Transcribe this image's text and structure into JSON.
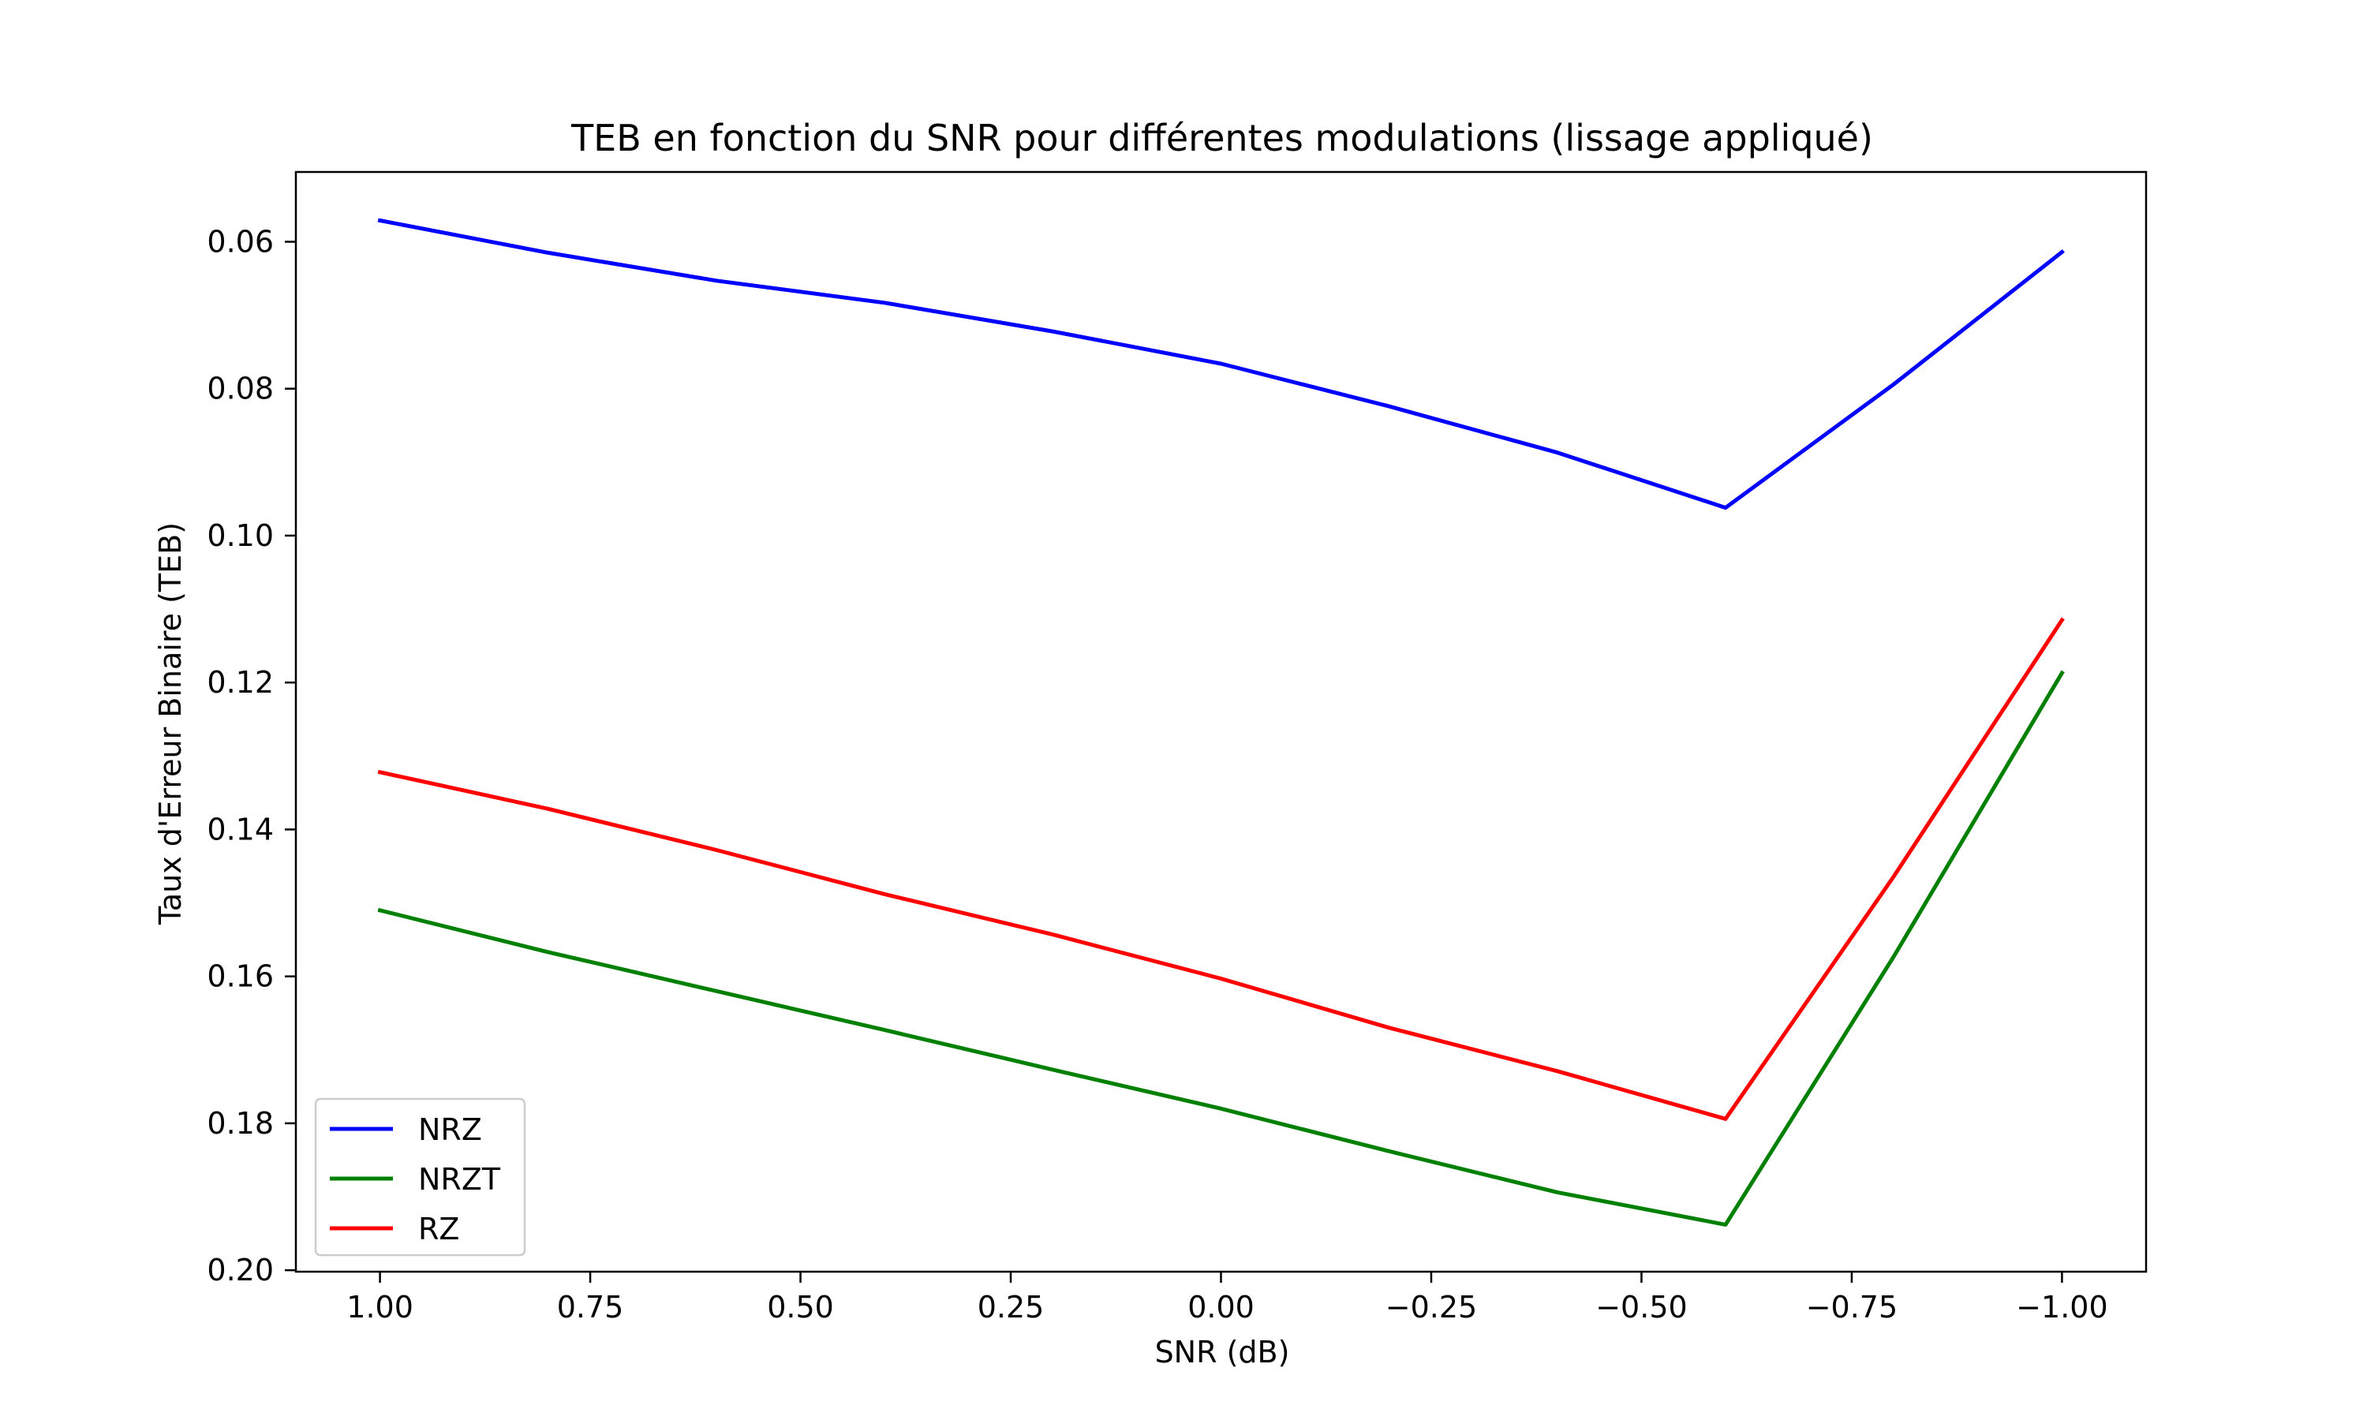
{
  "chart_data": {
    "type": "line",
    "title": "TEB en fonction du SNR pour différentes modulations (lissage appliqué)",
    "xlabel": "SNR (dB)",
    "ylabel": "Taux d'Erreur Binaire (TEB)",
    "x": [
      1.0,
      0.8,
      0.6,
      0.4,
      0.2,
      0.0,
      -0.2,
      -0.4,
      -0.6,
      -0.8,
      -1.0
    ],
    "x_ticks": [
      1.0,
      0.75,
      0.5,
      0.25,
      0.0,
      -0.25,
      -0.5,
      -0.75,
      -1.0
    ],
    "x_tick_labels": [
      "1.00",
      "0.75",
      "0.50",
      "0.25",
      "0.00",
      "−0.25",
      "−0.50",
      "−0.75",
      "−1.00"
    ],
    "xlim": [
      1.1,
      -1.1
    ],
    "y_ticks": [
      0.06,
      0.08,
      0.1,
      0.12,
      0.14,
      0.16,
      0.18,
      0.2
    ],
    "y_tick_labels": [
      "0.06",
      "0.08",
      "0.10",
      "0.12",
      "0.14",
      "0.16",
      "0.18",
      "0.20"
    ],
    "ylim": [
      0.2002,
      0.0505
    ],
    "y_inverted": true,
    "grid": false,
    "legend_position": "lower-left",
    "series": [
      {
        "name": "NRZ",
        "color": "#0000ff",
        "values": [
          0.0571,
          0.0615,
          0.0653,
          0.0683,
          0.0722,
          0.0766,
          0.0824,
          0.0887,
          0.0962,
          0.0794,
          0.0614
        ]
      },
      {
        "name": "NRZT",
        "color": "#008000",
        "values": [
          0.151,
          0.1567,
          0.162,
          0.1673,
          0.1727,
          0.178,
          0.1838,
          0.1894,
          0.1938,
          0.1573,
          0.1187
        ]
      },
      {
        "name": "RZ",
        "color": "#ff0000",
        "values": [
          0.1322,
          0.1372,
          0.1428,
          0.1488,
          0.1543,
          0.1603,
          0.167,
          0.1729,
          0.1794,
          0.1464,
          0.1115
        ]
      }
    ]
  }
}
